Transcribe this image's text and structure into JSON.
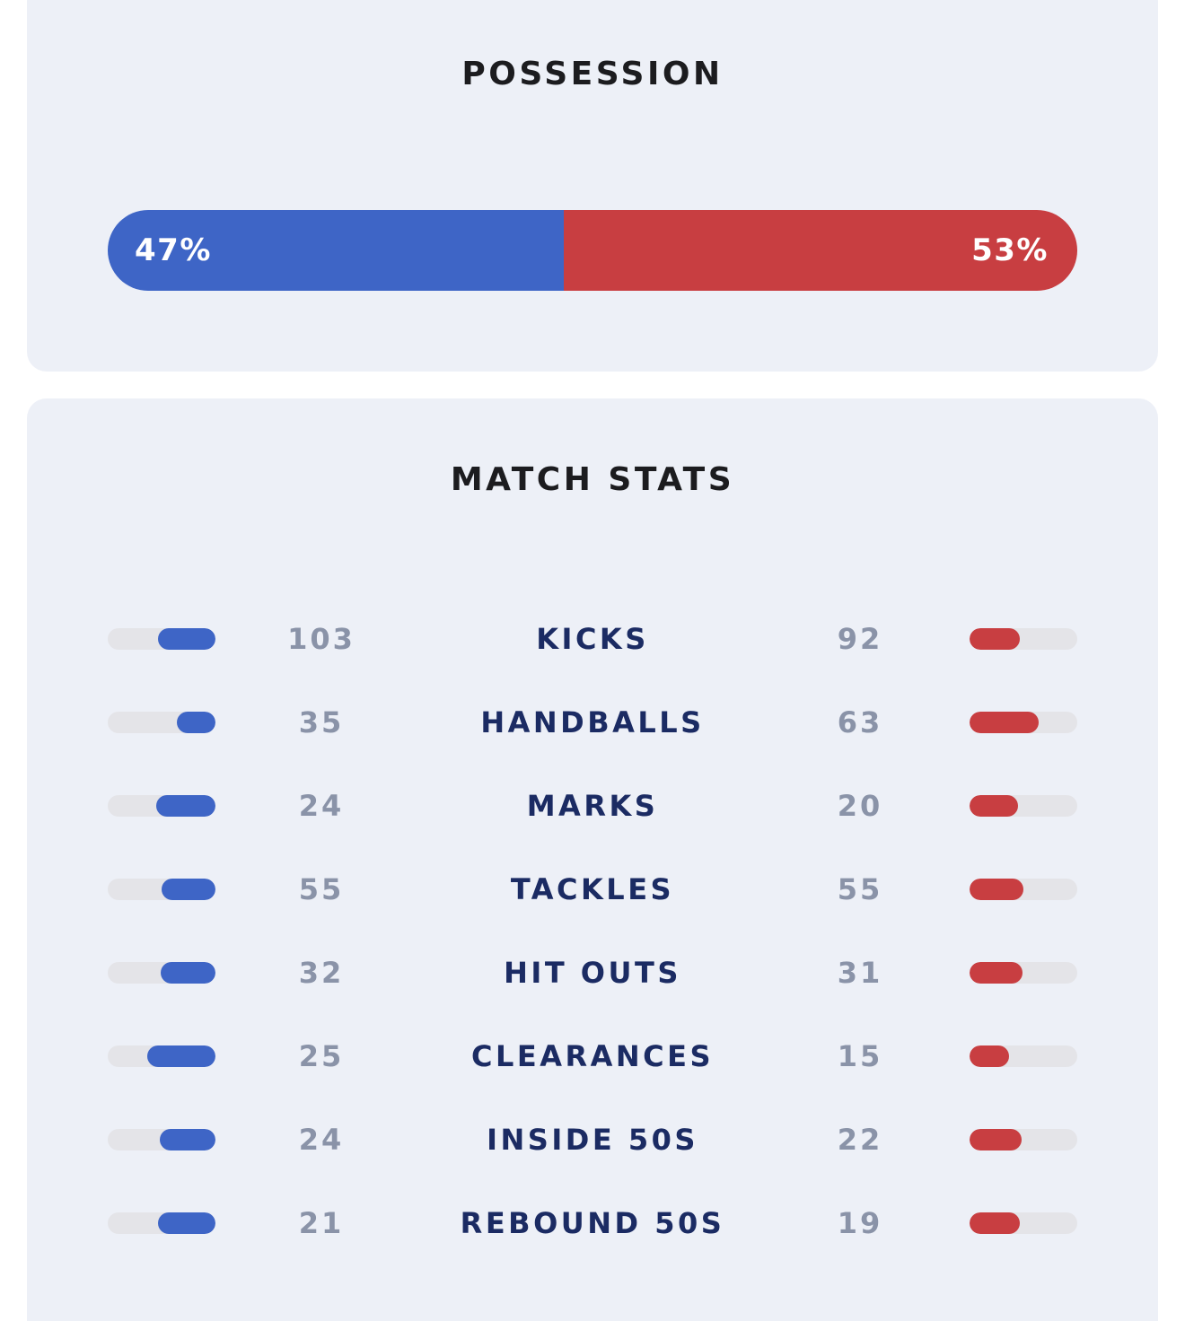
{
  "colors": {
    "home": "#3e65c6",
    "away": "#c83e41",
    "card_bg": "#edf0f7",
    "track": "#e4e4e8"
  },
  "possession": {
    "title": "POSSESSION",
    "home_label": "47%",
    "away_label": "53%",
    "home_pct": 47,
    "away_pct": 53
  },
  "match_stats": {
    "title": "MATCH STATS",
    "rows": [
      {
        "label": "KICKS",
        "home": "103",
        "away": "92",
        "home_fill": 0.53,
        "away_fill": 0.47
      },
      {
        "label": "HANDBALLS",
        "home": "35",
        "away": "63",
        "home_fill": 0.36,
        "away_fill": 0.64
      },
      {
        "label": "MARKS",
        "home": "24",
        "away": "20",
        "home_fill": 0.55,
        "away_fill": 0.45
      },
      {
        "label": "TACKLES",
        "home": "55",
        "away": "55",
        "home_fill": 0.5,
        "away_fill": 0.5
      },
      {
        "label": "HIT OUTS",
        "home": "32",
        "away": "31",
        "home_fill": 0.51,
        "away_fill": 0.49
      },
      {
        "label": "CLEARANCES",
        "home": "25",
        "away": "15",
        "home_fill": 0.63,
        "away_fill": 0.37
      },
      {
        "label": "INSIDE 50S",
        "home": "24",
        "away": "22",
        "home_fill": 0.52,
        "away_fill": 0.48
      },
      {
        "label": "REBOUND 50S",
        "home": "21",
        "away": "19",
        "home_fill": 0.53,
        "away_fill": 0.47
      }
    ]
  }
}
